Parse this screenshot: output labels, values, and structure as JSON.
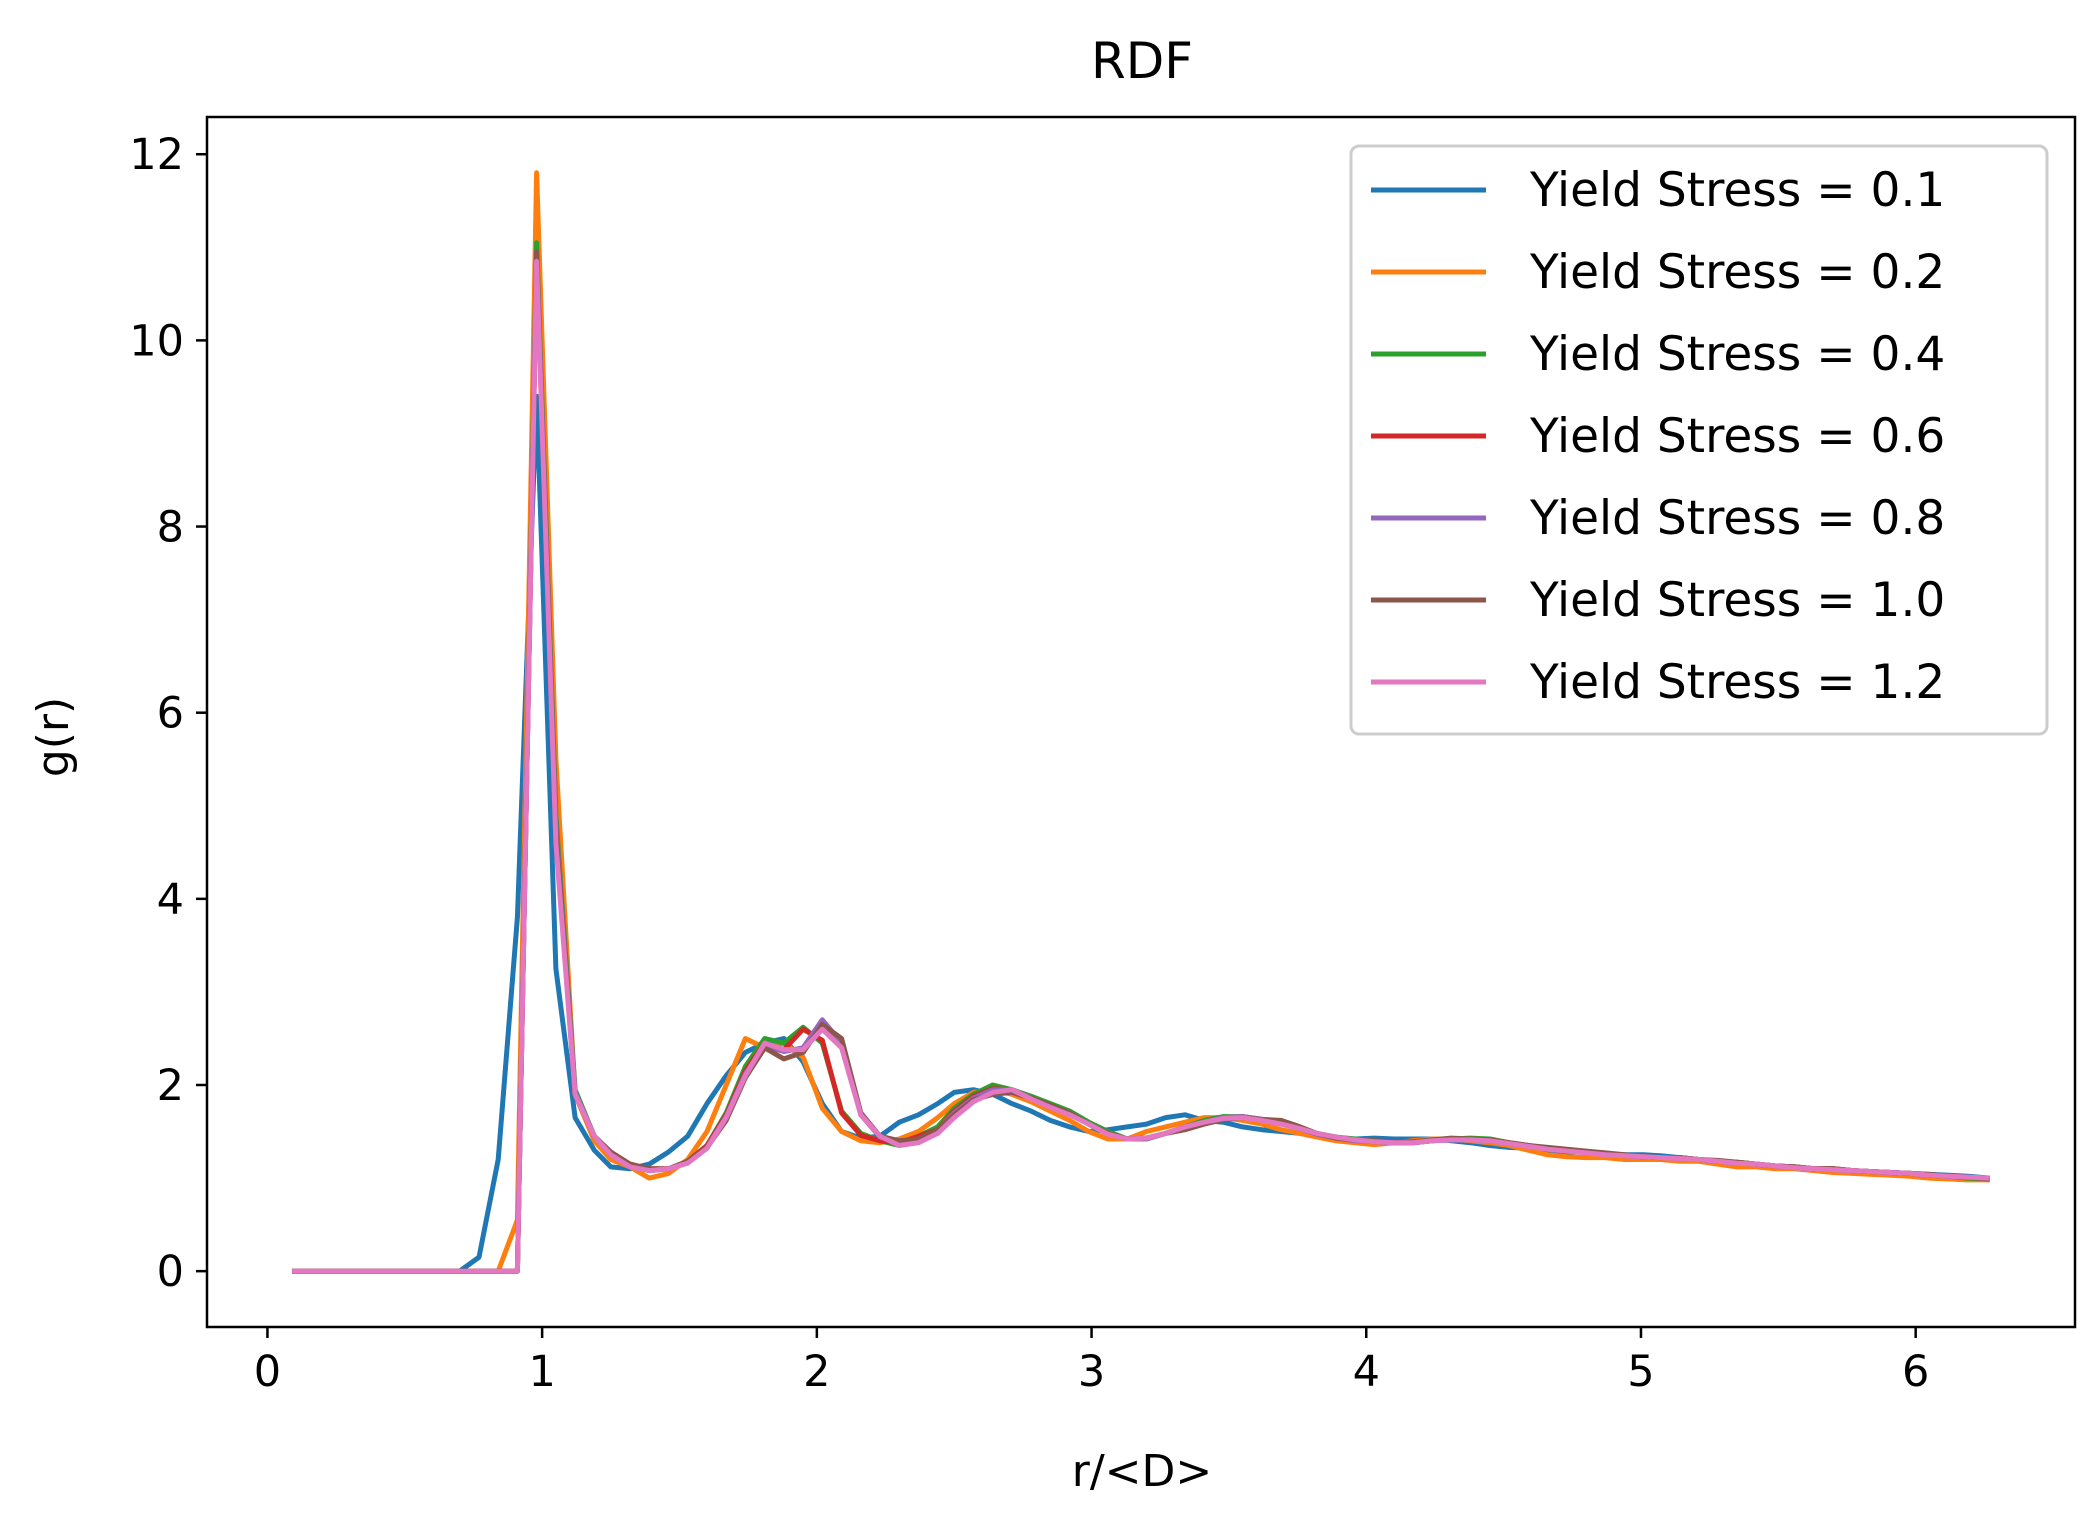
{
  "chart_data": {
    "type": "line",
    "title": "RDF",
    "xlabel": "r/<D>",
    "ylabel": "g(r)",
    "xlim": [
      -0.22,
      6.58
    ],
    "ylim": [
      -0.6,
      12.4
    ],
    "xticks": [
      0,
      1,
      2,
      3,
      4,
      5,
      6
    ],
    "yticks": [
      0,
      2,
      4,
      6,
      8,
      10,
      12
    ],
    "grid": false,
    "legend_position": "top-right",
    "series": [
      {
        "name": "Yield Stress = 0.1",
        "color": "#1f77b4",
        "x": [
          0.09,
          0.7,
          0.77,
          0.84,
          0.91,
          0.98,
          1.05,
          1.12,
          1.19,
          1.25,
          1.32,
          1.39,
          1.46,
          1.53,
          1.6,
          1.67,
          1.74,
          1.81,
          1.88,
          1.95,
          2.02,
          2.09,
          2.16,
          2.23,
          2.3,
          2.37,
          2.44,
          2.5,
          2.57,
          2.64,
          2.71,
          2.78,
          2.85,
          2.92,
          2.99,
          3.06,
          3.13,
          3.2,
          3.27,
          3.34,
          3.41,
          3.48,
          3.55,
          3.62,
          3.69,
          3.76,
          3.82,
          3.89,
          3.96,
          4.03,
          4.1,
          4.17,
          4.24,
          4.31,
          4.38,
          4.45,
          4.52,
          4.59,
          4.66,
          4.73,
          4.8,
          4.87,
          4.94,
          5.01,
          5.07,
          5.14,
          5.21,
          5.28,
          5.35,
          5.42,
          5.49,
          5.56,
          5.63,
          5.7,
          5.77,
          5.84,
          5.91,
          5.98,
          6.05,
          6.12,
          6.19,
          6.27
        ],
        "y": [
          0,
          0,
          0.15,
          1.2,
          3.8,
          9.4,
          3.25,
          1.65,
          1.3,
          1.12,
          1.1,
          1.15,
          1.28,
          1.45,
          1.8,
          2.1,
          2.35,
          2.45,
          2.5,
          2.25,
          1.8,
          1.5,
          1.43,
          1.45,
          1.6,
          1.68,
          1.8,
          1.92,
          1.95,
          1.9,
          1.8,
          1.72,
          1.62,
          1.55,
          1.5,
          1.52,
          1.55,
          1.58,
          1.65,
          1.68,
          1.62,
          1.6,
          1.55,
          1.52,
          1.5,
          1.48,
          1.45,
          1.43,
          1.42,
          1.43,
          1.42,
          1.42,
          1.42,
          1.4,
          1.38,
          1.35,
          1.33,
          1.32,
          1.3,
          1.28,
          1.28,
          1.26,
          1.25,
          1.25,
          1.24,
          1.22,
          1.2,
          1.18,
          1.16,
          1.15,
          1.13,
          1.12,
          1.1,
          1.1,
          1.08,
          1.07,
          1.06,
          1.05,
          1.04,
          1.03,
          1.02,
          1.0
        ]
      },
      {
        "name": "Yield Stress = 0.2",
        "color": "#ff7f0e",
        "x": [
          0.09,
          0.84,
          0.91,
          0.98,
          1.05,
          1.12,
          1.19,
          1.25,
          1.32,
          1.39,
          1.46,
          1.53,
          1.6,
          1.67,
          1.74,
          1.81,
          1.88,
          1.95,
          2.02,
          2.09,
          2.16,
          2.23,
          2.3,
          2.37,
          2.44,
          2.5,
          2.57,
          2.64,
          2.71,
          2.78,
          2.85,
          2.92,
          2.99,
          3.06,
          3.13,
          3.2,
          3.27,
          3.34,
          3.41,
          3.48,
          3.55,
          3.62,
          3.69,
          3.76,
          3.82,
          3.89,
          3.96,
          4.03,
          4.1,
          4.17,
          4.24,
          4.31,
          4.38,
          4.45,
          4.52,
          4.59,
          4.66,
          4.73,
          4.8,
          4.87,
          4.94,
          5.01,
          5.07,
          5.14,
          5.21,
          5.28,
          5.35,
          5.42,
          5.49,
          5.56,
          5.63,
          5.7,
          5.77,
          5.84,
          5.91,
          5.98,
          6.05,
          6.12,
          6.19,
          6.27
        ],
        "y": [
          0,
          0,
          0.55,
          11.8,
          5.5,
          1.9,
          1.4,
          1.2,
          1.12,
          1.0,
          1.05,
          1.2,
          1.5,
          2.0,
          2.5,
          2.4,
          2.45,
          2.3,
          1.75,
          1.5,
          1.4,
          1.38,
          1.42,
          1.5,
          1.65,
          1.8,
          1.92,
          1.95,
          1.9,
          1.82,
          1.72,
          1.62,
          1.5,
          1.42,
          1.42,
          1.5,
          1.55,
          1.6,
          1.65,
          1.65,
          1.62,
          1.58,
          1.52,
          1.48,
          1.44,
          1.4,
          1.38,
          1.36,
          1.38,
          1.4,
          1.42,
          1.42,
          1.4,
          1.38,
          1.35,
          1.3,
          1.25,
          1.23,
          1.22,
          1.22,
          1.2,
          1.2,
          1.2,
          1.18,
          1.18,
          1.15,
          1.12,
          1.12,
          1.1,
          1.1,
          1.08,
          1.06,
          1.05,
          1.04,
          1.03,
          1.02,
          1.0,
          0.99,
          0.98,
          0.98
        ]
      },
      {
        "name": "Yield Stress = 0.4",
        "color": "#2ca02c",
        "x": [
          0.09,
          0.91,
          0.98,
          1.05,
          1.12,
          1.19,
          1.25,
          1.32,
          1.39,
          1.46,
          1.53,
          1.6,
          1.67,
          1.74,
          1.81,
          1.88,
          1.95,
          2.02,
          2.09,
          2.16,
          2.23,
          2.3,
          2.37,
          2.44,
          2.5,
          2.57,
          2.64,
          2.71,
          2.78,
          2.85,
          2.92,
          2.99,
          3.06,
          3.13,
          3.2,
          3.27,
          3.34,
          3.41,
          3.48,
          3.55,
          3.62,
          3.69,
          3.76,
          3.82,
          3.89,
          3.96,
          4.03,
          4.1,
          4.17,
          4.24,
          4.31,
          4.38,
          4.45,
          4.52,
          4.59,
          4.66,
          4.73,
          4.8,
          4.87,
          4.94,
          5.01,
          5.07,
          5.14,
          5.21,
          5.28,
          5.35,
          5.42,
          5.49,
          5.56,
          5.63,
          5.7,
          5.77,
          5.84,
          5.91,
          5.98,
          6.05,
          6.12,
          6.19,
          6.27
        ],
        "y": [
          0,
          0,
          11.05,
          4.9,
          1.95,
          1.45,
          1.25,
          1.12,
          1.08,
          1.1,
          1.18,
          1.35,
          1.7,
          2.2,
          2.5,
          2.45,
          2.62,
          2.45,
          1.72,
          1.48,
          1.4,
          1.35,
          1.45,
          1.55,
          1.75,
          1.9,
          2.0,
          1.95,
          1.88,
          1.8,
          1.72,
          1.6,
          1.5,
          1.42,
          1.42,
          1.48,
          1.55,
          1.62,
          1.66,
          1.66,
          1.63,
          1.6,
          1.54,
          1.48,
          1.44,
          1.42,
          1.4,
          1.38,
          1.38,
          1.4,
          1.42,
          1.43,
          1.42,
          1.38,
          1.35,
          1.32,
          1.3,
          1.28,
          1.26,
          1.24,
          1.23,
          1.22,
          1.22,
          1.2,
          1.18,
          1.17,
          1.15,
          1.13,
          1.12,
          1.1,
          1.1,
          1.08,
          1.07,
          1.06,
          1.05,
          1.03,
          1.02,
          1.0,
          0.99
        ]
      },
      {
        "name": "Yield Stress = 0.6",
        "color": "#d62728",
        "x": [
          0.09,
          0.91,
          0.98,
          1.05,
          1.12,
          1.19,
          1.25,
          1.32,
          1.39,
          1.46,
          1.53,
          1.6,
          1.67,
          1.74,
          1.81,
          1.88,
          1.95,
          2.02,
          2.09,
          2.16,
          2.23,
          2.3,
          2.37,
          2.44,
          2.5,
          2.57,
          2.64,
          2.71,
          2.78,
          2.85,
          2.92,
          2.99,
          3.06,
          3.13,
          3.2,
          3.27,
          3.34,
          3.41,
          3.48,
          3.55,
          3.62,
          3.69,
          3.76,
          3.82,
          3.89,
          3.96,
          4.03,
          4.1,
          4.17,
          4.24,
          4.31,
          4.38,
          4.45,
          4.52,
          4.59,
          4.66,
          4.73,
          4.8,
          4.87,
          4.94,
          5.01,
          5.07,
          5.14,
          5.21,
          5.28,
          5.35,
          5.42,
          5.49,
          5.56,
          5.63,
          5.7,
          5.77,
          5.84,
          5.91,
          5.98,
          6.05,
          6.12,
          6.19,
          6.27
        ],
        "y": [
          0,
          0,
          10.9,
          4.7,
          1.9,
          1.45,
          1.27,
          1.15,
          1.1,
          1.1,
          1.18,
          1.35,
          1.68,
          2.15,
          2.45,
          2.38,
          2.6,
          2.48,
          1.7,
          1.46,
          1.4,
          1.38,
          1.45,
          1.52,
          1.72,
          1.88,
          1.96,
          1.95,
          1.86,
          1.78,
          1.7,
          1.58,
          1.48,
          1.42,
          1.43,
          1.48,
          1.55,
          1.6,
          1.65,
          1.66,
          1.63,
          1.6,
          1.54,
          1.48,
          1.44,
          1.41,
          1.39,
          1.38,
          1.38,
          1.4,
          1.42,
          1.42,
          1.41,
          1.38,
          1.35,
          1.32,
          1.3,
          1.28,
          1.26,
          1.24,
          1.23,
          1.22,
          1.22,
          1.2,
          1.18,
          1.17,
          1.15,
          1.13,
          1.12,
          1.1,
          1.1,
          1.08,
          1.07,
          1.06,
          1.05,
          1.03,
          1.02,
          1.01,
          0.99
        ]
      },
      {
        "name": "Yield Stress = 0.8",
        "color": "#9467bd",
        "x": [
          0.09,
          0.91,
          0.98,
          1.05,
          1.12,
          1.19,
          1.25,
          1.32,
          1.39,
          1.46,
          1.53,
          1.6,
          1.67,
          1.74,
          1.81,
          1.88,
          1.95,
          2.02,
          2.09,
          2.16,
          2.23,
          2.3,
          2.37,
          2.44,
          2.5,
          2.57,
          2.64,
          2.71,
          2.78,
          2.85,
          2.92,
          2.99,
          3.06,
          3.13,
          3.2,
          3.27,
          3.34,
          3.41,
          3.48,
          3.55,
          3.62,
          3.69,
          3.76,
          3.82,
          3.89,
          3.96,
          4.03,
          4.1,
          4.17,
          4.24,
          4.31,
          4.38,
          4.45,
          4.52,
          4.59,
          4.66,
          4.73,
          4.8,
          4.87,
          4.94,
          5.01,
          5.07,
          5.14,
          5.21,
          5.28,
          5.35,
          5.42,
          5.49,
          5.56,
          5.63,
          5.7,
          5.77,
          5.84,
          5.91,
          5.98,
          6.05,
          6.12,
          6.19,
          6.27
        ],
        "y": [
          0,
          0,
          10.95,
          4.8,
          1.92,
          1.45,
          1.25,
          1.13,
          1.08,
          1.1,
          1.17,
          1.33,
          1.66,
          2.12,
          2.42,
          2.36,
          2.4,
          2.7,
          2.45,
          1.68,
          1.44,
          1.38,
          1.42,
          1.52,
          1.7,
          1.86,
          1.95,
          1.95,
          1.86,
          1.76,
          1.7,
          1.58,
          1.48,
          1.42,
          1.42,
          1.48,
          1.54,
          1.6,
          1.65,
          1.66,
          1.63,
          1.58,
          1.53,
          1.47,
          1.43,
          1.4,
          1.39,
          1.38,
          1.38,
          1.4,
          1.41,
          1.41,
          1.4,
          1.37,
          1.34,
          1.32,
          1.3,
          1.27,
          1.26,
          1.24,
          1.23,
          1.22,
          1.21,
          1.2,
          1.18,
          1.16,
          1.15,
          1.13,
          1.11,
          1.1,
          1.09,
          1.08,
          1.07,
          1.06,
          1.05,
          1.03,
          1.02,
          1.01,
          0.99
        ]
      },
      {
        "name": "Yield Stress = 1.0",
        "color": "#8c564b",
        "x": [
          0.09,
          0.91,
          0.98,
          1.05,
          1.12,
          1.19,
          1.25,
          1.32,
          1.39,
          1.46,
          1.53,
          1.6,
          1.67,
          1.74,
          1.81,
          1.88,
          1.95,
          2.02,
          2.09,
          2.16,
          2.23,
          2.3,
          2.37,
          2.44,
          2.5,
          2.57,
          2.64,
          2.71,
          2.78,
          2.85,
          2.92,
          2.99,
          3.06,
          3.13,
          3.2,
          3.27,
          3.34,
          3.41,
          3.48,
          3.55,
          3.62,
          3.69,
          3.76,
          3.82,
          3.89,
          3.96,
          4.03,
          4.1,
          4.17,
          4.24,
          4.31,
          4.38,
          4.45,
          4.52,
          4.59,
          4.66,
          4.73,
          4.8,
          4.87,
          4.94,
          5.01,
          5.07,
          5.14,
          5.21,
          5.28,
          5.35,
          5.42,
          5.49,
          5.56,
          5.63,
          5.7,
          5.77,
          5.84,
          5.91,
          5.98,
          6.05,
          6.12,
          6.19,
          6.27
        ],
        "y": [
          0,
          0,
          10.95,
          4.75,
          1.9,
          1.45,
          1.28,
          1.15,
          1.1,
          1.1,
          1.18,
          1.33,
          1.62,
          2.08,
          2.4,
          2.28,
          2.35,
          2.65,
          2.5,
          1.7,
          1.45,
          1.4,
          1.42,
          1.52,
          1.68,
          1.84,
          1.9,
          1.92,
          1.86,
          1.78,
          1.7,
          1.58,
          1.48,
          1.42,
          1.43,
          1.48,
          1.52,
          1.58,
          1.63,
          1.65,
          1.63,
          1.62,
          1.55,
          1.48,
          1.43,
          1.41,
          1.4,
          1.39,
          1.39,
          1.41,
          1.43,
          1.42,
          1.41,
          1.38,
          1.35,
          1.33,
          1.31,
          1.29,
          1.27,
          1.25,
          1.23,
          1.22,
          1.22,
          1.2,
          1.19,
          1.17,
          1.15,
          1.13,
          1.12,
          1.1,
          1.1,
          1.08,
          1.07,
          1.06,
          1.05,
          1.04,
          1.02,
          1.01,
          0.99
        ]
      },
      {
        "name": "Yield Stress = 1.2",
        "color": "#e377c2",
        "x": [
          0.09,
          0.91,
          0.98,
          1.05,
          1.12,
          1.19,
          1.25,
          1.32,
          1.39,
          1.46,
          1.53,
          1.6,
          1.67,
          1.74,
          1.81,
          1.88,
          1.95,
          2.02,
          2.09,
          2.16,
          2.23,
          2.3,
          2.37,
          2.44,
          2.5,
          2.57,
          2.64,
          2.71,
          2.78,
          2.85,
          2.92,
          2.99,
          3.06,
          3.13,
          3.2,
          3.27,
          3.34,
          3.41,
          3.48,
          3.55,
          3.62,
          3.69,
          3.76,
          3.82,
          3.89,
          3.96,
          4.03,
          4.1,
          4.17,
          4.24,
          4.31,
          4.38,
          4.45,
          4.52,
          4.59,
          4.66,
          4.73,
          4.8,
          4.87,
          4.94,
          5.01,
          5.07,
          5.14,
          5.21,
          5.28,
          5.35,
          5.42,
          5.49,
          5.56,
          5.63,
          5.7,
          5.77,
          5.84,
          5.91,
          5.98,
          6.05,
          6.12,
          6.19,
          6.27
        ],
        "y": [
          0,
          0,
          10.85,
          4.6,
          1.9,
          1.45,
          1.25,
          1.12,
          1.08,
          1.1,
          1.16,
          1.32,
          1.65,
          2.1,
          2.45,
          2.38,
          2.38,
          2.6,
          2.4,
          1.68,
          1.45,
          1.35,
          1.38,
          1.48,
          1.65,
          1.82,
          1.92,
          1.95,
          1.85,
          1.76,
          1.68,
          1.58,
          1.47,
          1.42,
          1.43,
          1.48,
          1.55,
          1.6,
          1.64,
          1.65,
          1.62,
          1.58,
          1.53,
          1.48,
          1.44,
          1.41,
          1.39,
          1.38,
          1.38,
          1.4,
          1.41,
          1.41,
          1.4,
          1.37,
          1.34,
          1.31,
          1.29,
          1.27,
          1.25,
          1.24,
          1.23,
          1.22,
          1.21,
          1.2,
          1.18,
          1.16,
          1.15,
          1.13,
          1.11,
          1.1,
          1.09,
          1.08,
          1.07,
          1.06,
          1.05,
          1.03,
          1.02,
          1.01,
          1.0
        ]
      }
    ]
  }
}
